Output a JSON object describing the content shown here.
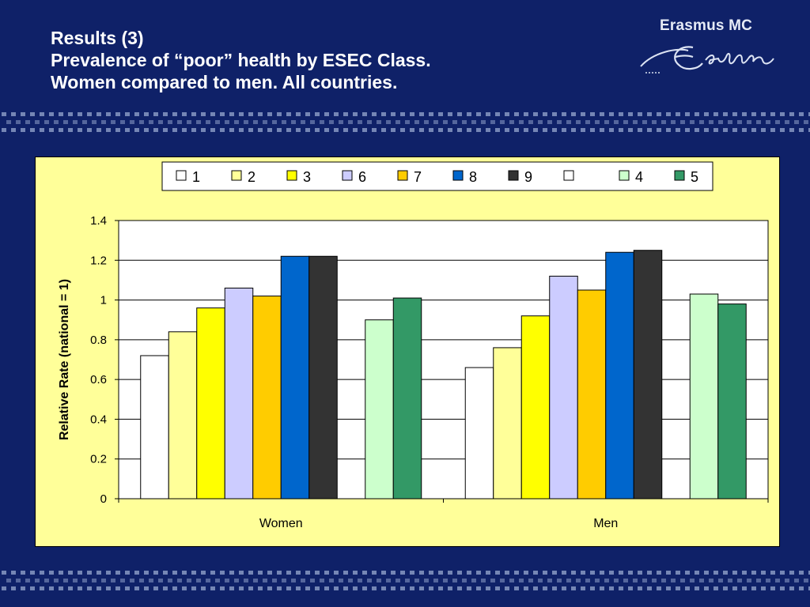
{
  "slide": {
    "title_lines": [
      "Results (3)",
      "Prevalence of “poor” health by ESEC Class.",
      "Women compared to men. All countries."
    ]
  },
  "logo": {
    "text": "Erasmus MC",
    "signature_text": "Erasmus"
  },
  "colors": {
    "background": "#0f2168",
    "chart_panel": "#ffff99",
    "dots": "#8fa0c8"
  },
  "chart_data": {
    "type": "bar",
    "categories": [
      "Women",
      "Men"
    ],
    "ylabel": "Relative Rate (national = 1)",
    "xlabel": "",
    "ylim": [
      0,
      1.4
    ],
    "yticks": [
      "0",
      "0.2",
      "0.4",
      "0.6",
      "0.8",
      "1",
      "1.2",
      "1.4"
    ],
    "grid": true,
    "legend_position": "top-center",
    "series": [
      {
        "name": "1",
        "color": "#ffffff",
        "values": [
          0.72,
          0.66
        ]
      },
      {
        "name": "2",
        "color": "#ffff99",
        "values": [
          0.84,
          0.76
        ]
      },
      {
        "name": "3",
        "color": "#ffff00",
        "values": [
          0.96,
          0.92
        ]
      },
      {
        "name": "6",
        "color": "#ccccff",
        "values": [
          1.06,
          1.12
        ]
      },
      {
        "name": "7",
        "color": "#ffcc00",
        "values": [
          1.02,
          1.05
        ]
      },
      {
        "name": "8",
        "color": "#0066cc",
        "values": [
          1.22,
          1.24
        ]
      },
      {
        "name": "9",
        "color": "#333333",
        "values": [
          1.22,
          1.25
        ]
      },
      {
        "name": "",
        "color": "#ffffff",
        "values": [
          null,
          null
        ]
      },
      {
        "name": "4",
        "color": "#ccffcc",
        "values": [
          0.9,
          1.03
        ]
      },
      {
        "name": "5",
        "color": "#339966",
        "values": [
          1.01,
          0.98
        ]
      }
    ]
  }
}
